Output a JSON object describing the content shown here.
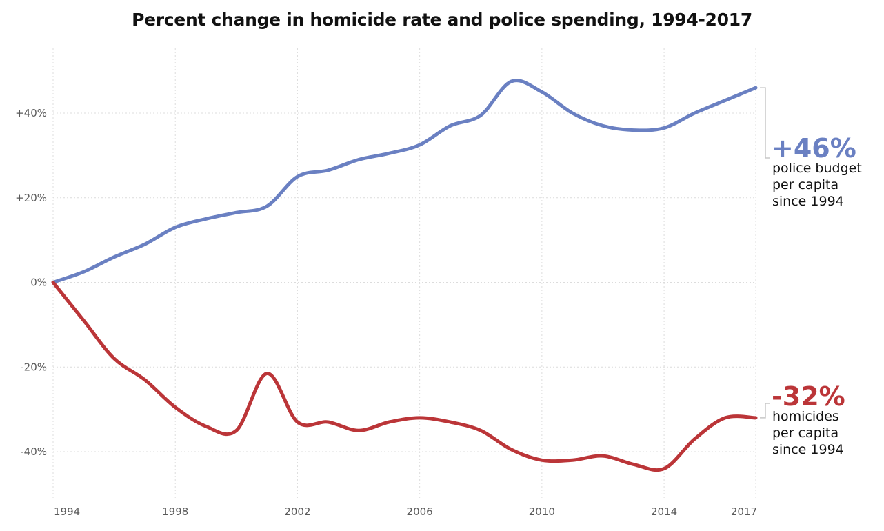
{
  "title": "Percent change in homicide rate and police spending, 1994-2017",
  "colors": {
    "police": "#6a80c2",
    "homicide": "#bb3538",
    "grid": "#dcdcdc",
    "bracket": "#c8c8c8"
  },
  "chart_data": {
    "type": "line",
    "title": "Percent change in homicide rate and police spending, 1994-2017",
    "xlabel": "",
    "ylabel": "",
    "xlim": [
      1994,
      2017
    ],
    "ylim": [
      -50,
      55
    ],
    "grid": true,
    "legend": "none (direct labels at right)",
    "x_ticks": [
      1994,
      1998,
      2002,
      2006,
      2010,
      2014,
      2017
    ],
    "x_tick_labels": [
      "1994",
      "1998",
      "2002",
      "2006",
      "2010",
      "2014",
      "2017"
    ],
    "y_ticks": [
      40,
      20,
      0,
      -20,
      -40
    ],
    "y_tick_labels": [
      "+40%",
      "+20%",
      "0%",
      "-20%",
      "-40%"
    ],
    "x": [
      1994,
      1995,
      1996,
      1997,
      1998,
      1999,
      2000,
      2001,
      2002,
      2003,
      2004,
      2005,
      2006,
      2007,
      2008,
      2009,
      2010,
      2011,
      2012,
      2013,
      2014,
      2015,
      2016,
      2017
    ],
    "series": [
      {
        "key": "police",
        "values": [
          0,
          2.5,
          6,
          9,
          13,
          15,
          16.5,
          18,
          25,
          26.5,
          29,
          30.5,
          32.5,
          37,
          39.5,
          47.5,
          45,
          40,
          37,
          36,
          36.5,
          40,
          43,
          46
        ]
      },
      {
        "key": "homicide",
        "values": [
          0,
          -9,
          -18,
          -23,
          -29.5,
          -34,
          -35,
          -21.5,
          -33,
          -33,
          -35,
          -33,
          -32,
          -33,
          -35,
          -39.5,
          -42,
          -42,
          -41,
          -43,
          -44,
          -37,
          -32,
          -32
        ]
      }
    ],
    "annotations": [
      {
        "series": "police",
        "value": "+46%",
        "lines": [
          "police budget",
          "per capita",
          "since 1994"
        ]
      },
      {
        "series": "homicide",
        "value": "-32%",
        "lines": [
          "homicides",
          "per capita",
          "since 1994"
        ]
      }
    ]
  }
}
